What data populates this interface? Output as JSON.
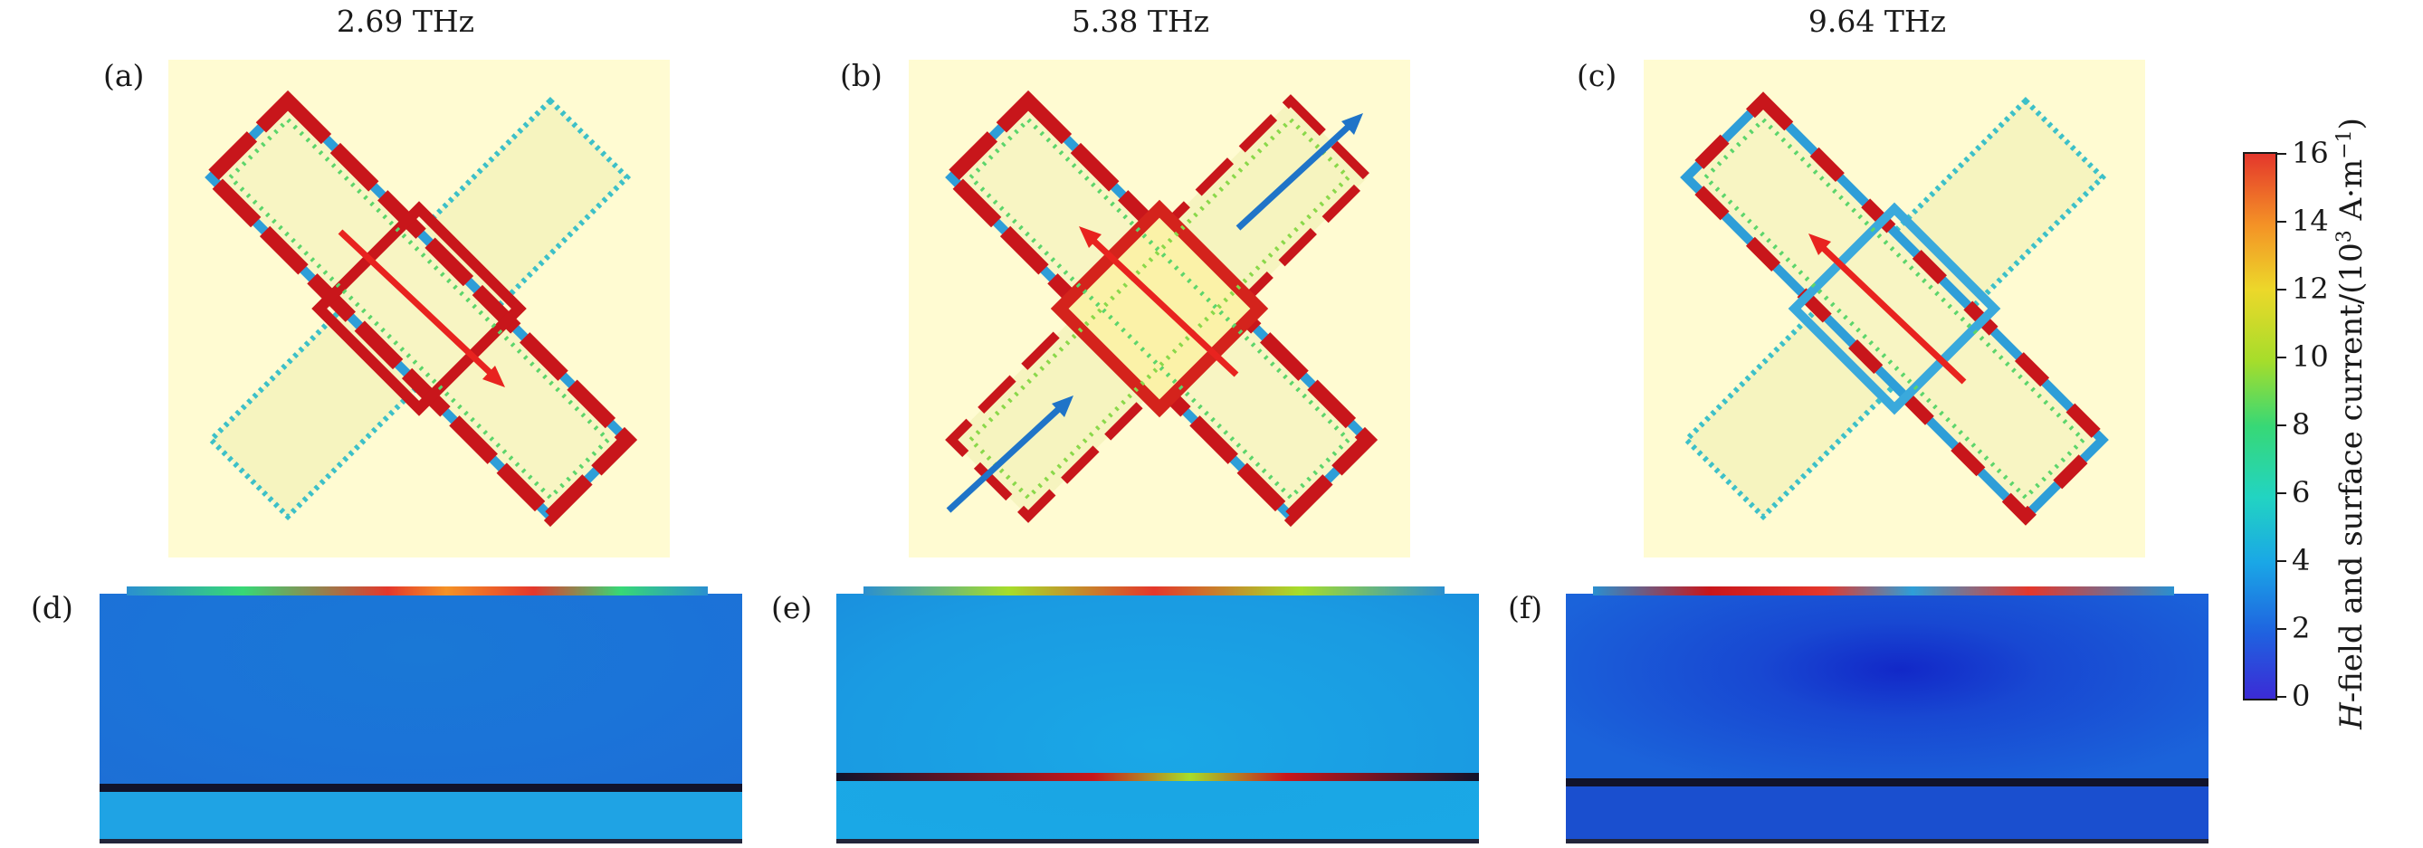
{
  "frequencies": [
    "2.69 THz",
    "5.38 THz",
    "9.64 THz"
  ],
  "panel_labels": [
    "(a)",
    "(b)",
    "(c)",
    "(d)",
    "(e)",
    "(f)"
  ],
  "colorbar": {
    "ticks": [
      "0",
      "2",
      "4",
      "6",
      "8",
      "10",
      "12",
      "14",
      "16"
    ],
    "title_prefix": "H",
    "title_rest": "-field and surface current/(10",
    "title_sup": "3",
    "title_unit": " A·m",
    "title_sup2": "−1",
    "title_close": ")",
    "colors": [
      "#3b2bd6",
      "#1f62e0",
      "#1aa7e6",
      "#22d4c2",
      "#37d876",
      "#a6dd2b",
      "#ecd82a",
      "#f49226",
      "#e4372c"
    ]
  },
  "colors": {
    "panel_background": "#fffbd2",
    "current_arrow_main": "#e8231f",
    "current_arrow_secondary": "#1f74c8"
  }
}
